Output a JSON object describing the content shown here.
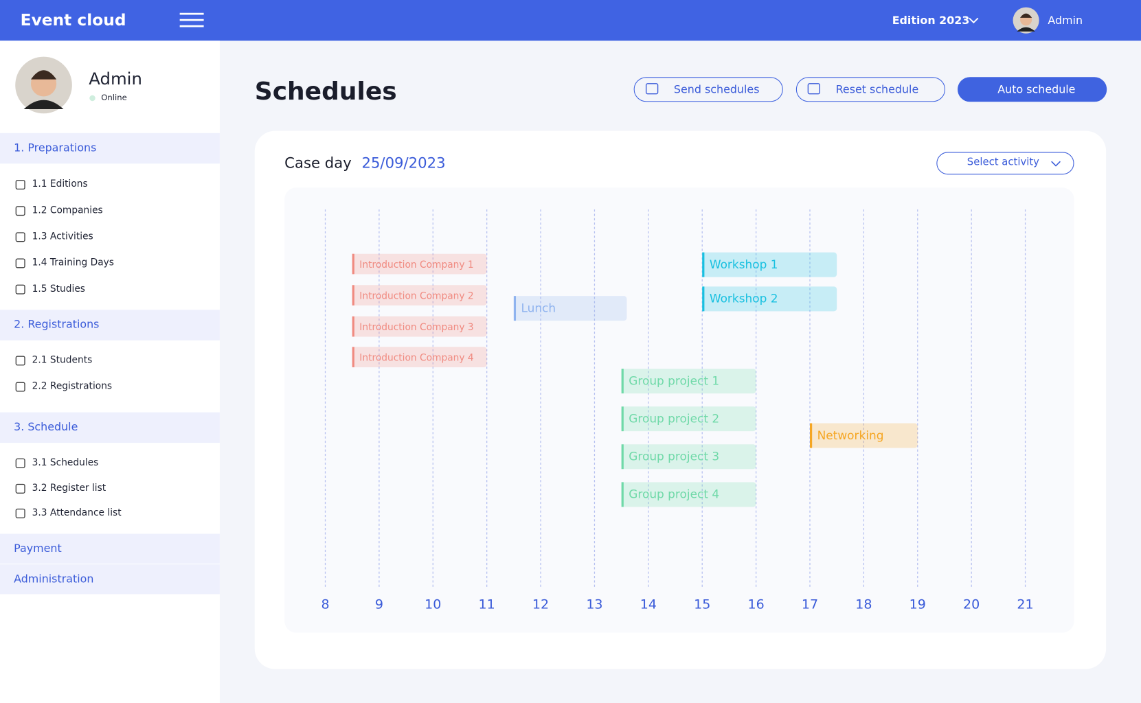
{
  "header": {
    "brand": "Event cloud",
    "edition": "Edition 2023",
    "user": "Admin"
  },
  "sidebar": {
    "profile": {
      "name": "Admin",
      "status": "Online"
    },
    "sections": [
      {
        "title": "1. Preparations",
        "items": [
          "1.1 Editions",
          "1.2 Companies",
          "1.3 Activities",
          "1.4 Training Days",
          "1.5 Studies"
        ]
      },
      {
        "title": "2. Registrations",
        "items": [
          "2.1 Students",
          "2.2 Registrations"
        ]
      },
      {
        "title": "3. Schedule",
        "items": [
          "3.1 Schedules",
          "3.2 Register list",
          "3.3 Attendance list"
        ]
      }
    ],
    "collapsed": [
      "Payment",
      "Administration"
    ]
  },
  "page": {
    "title": "Schedules",
    "buttons": [
      "Send schedules",
      "Reset schedule",
      "Auto schedule"
    ]
  },
  "schedule": {
    "label": "Case day",
    "date": "25/09/2023",
    "select": "Select activity",
    "xlim": [
      8,
      21
    ],
    "xticks": [
      8,
      9,
      10,
      11,
      12,
      13,
      14,
      15,
      16,
      17,
      18,
      19,
      20,
      21
    ],
    "events": [
      {
        "name": "Introduction Company 1",
        "start": 8.5,
        "end": 11,
        "color": "#f08a80"
      },
      {
        "name": "Introduction Company 2",
        "start": 8.5,
        "end": 11,
        "color": "#f08a80"
      },
      {
        "name": "Introduction Company 3",
        "start": 8.5,
        "end": 11,
        "color": "#f08a80"
      },
      {
        "name": "Introduction Company 4",
        "start": 8.5,
        "end": 11,
        "color": "#f08a80"
      },
      {
        "name": "Lunch",
        "start": 11.5,
        "end": 13.6,
        "color": "#8fb3ef"
      },
      {
        "name": "Workshop 1",
        "start": 15,
        "end": 17.5,
        "color": "#18c0e0"
      },
      {
        "name": "Workshop 2",
        "start": 15,
        "end": 17.5,
        "color": "#18c0e0"
      },
      {
        "name": "Group project 1",
        "start": 13.5,
        "end": 16,
        "color": "#6fd9a8"
      },
      {
        "name": "Group project 2",
        "start": 13.5,
        "end": 16,
        "color": "#6fd9a8"
      },
      {
        "name": "Group project 3",
        "start": 13.5,
        "end": 16,
        "color": "#6fd9a8"
      },
      {
        "name": "Group project 4",
        "start": 13.5,
        "end": 16,
        "color": "#6fd9a8"
      },
      {
        "name": "Networking",
        "start": 17,
        "end": 19,
        "color": "#f5a623"
      }
    ]
  }
}
